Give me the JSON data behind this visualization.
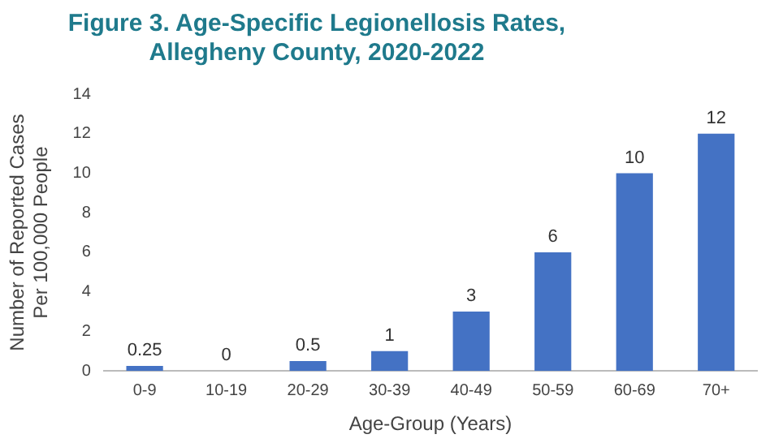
{
  "chart_data": {
    "type": "bar",
    "title": "Figure 3. Age-Specific Legionellosis Rates, Allegheny County, 2020-2022",
    "xlabel": "Age-Group (Years)",
    "ylabel": "Number of Reported Cases Per 100,000 People",
    "categories": [
      "0-9",
      "10-19",
      "20-29",
      "30-39",
      "40-49",
      "50-59",
      "60-69",
      "70+"
    ],
    "values": [
      0.25,
      0,
      0.5,
      1,
      3,
      6,
      10,
      12
    ],
    "color": "#4472c4",
    "ylim": [
      0,
      14
    ],
    "yticks": [
      0,
      2,
      4,
      6,
      8,
      10,
      12,
      14
    ],
    "grid": false,
    "legend": false,
    "data_labels": true
  }
}
